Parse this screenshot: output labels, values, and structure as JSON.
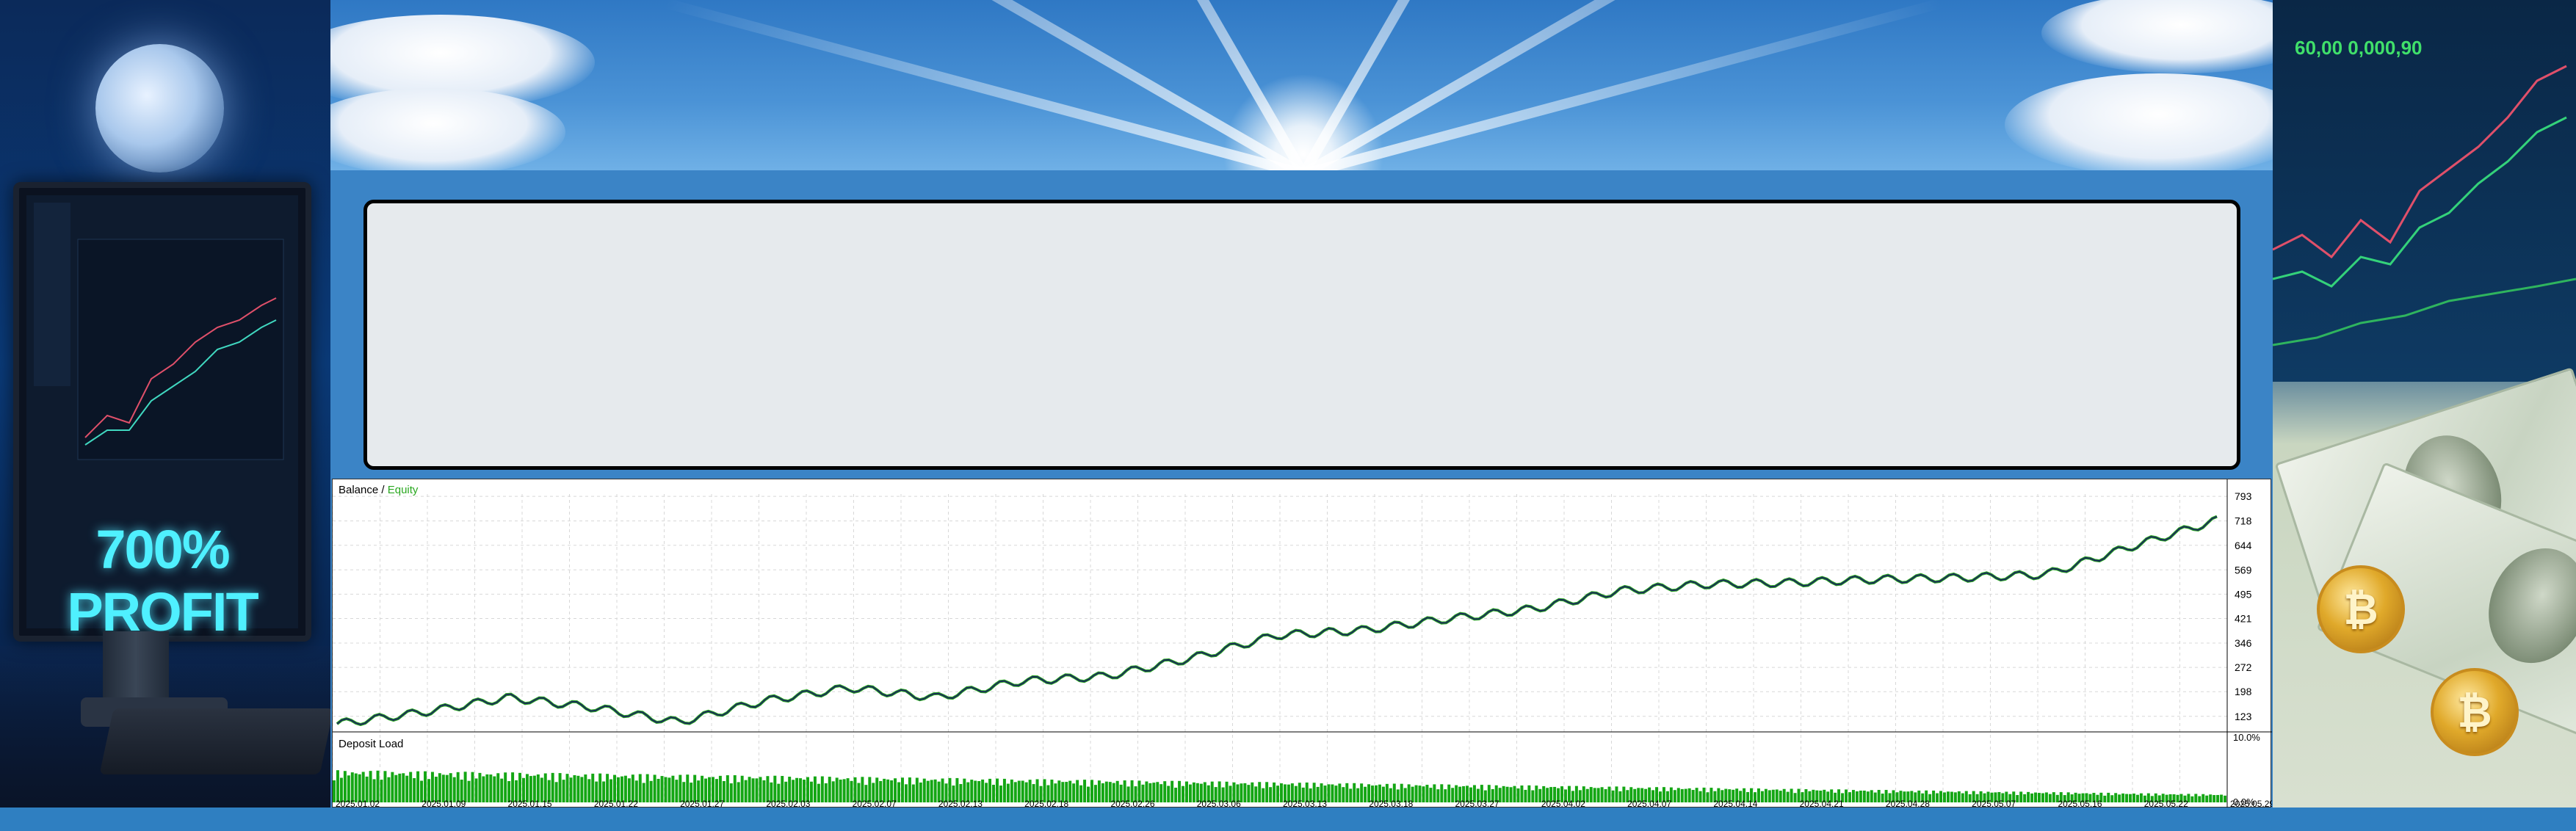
{
  "left_panel": {
    "headline": "700% PROFIT"
  },
  "text_box": {
    "content": ""
  },
  "chart_data": {
    "type": "line",
    "title": "Balance / Equity",
    "series": [
      {
        "name": "Balance",
        "color": "#1a2a5a"
      },
      {
        "name": "Equity",
        "color": "#2aa820"
      }
    ],
    "x": [
      "2025.01.02",
      "2025.01.09",
      "2025.01.15",
      "2025.01.22",
      "2025.01.27",
      "2025.02.03",
      "2025.02.07",
      "2025.02.13",
      "2025.02.18",
      "2025.02.26",
      "2025.03.06",
      "2025.03.13",
      "2025.03.18",
      "2025.03.27",
      "2025.04.02",
      "2025.04.07",
      "2025.04.14",
      "2025.04.21",
      "2025.04.28",
      "2025.05.07",
      "2025.05.16",
      "2025.05.22",
      "2025.05.29"
    ],
    "balance": [
      100,
      135,
      180,
      150,
      105,
      170,
      210,
      180,
      230,
      245,
      300,
      370,
      385,
      420,
      450,
      505,
      525,
      530,
      540,
      545,
      555,
      640,
      720
    ],
    "y_ticks": [
      "793",
      "718",
      "644",
      "569",
      "495",
      "421",
      "346",
      "272",
      "198",
      "123"
    ],
    "ylim": [
      80,
      800
    ],
    "deposit_load": {
      "title": "Deposit Load",
      "y_ticks": [
        "10.0%",
        "0.0%"
      ],
      "color": "#14a614"
    }
  },
  "right_panel": {
    "label": "60,00 0,000,90"
  },
  "colors": {
    "background": "#3a7fbf",
    "text_box": "#e6eaed"
  }
}
